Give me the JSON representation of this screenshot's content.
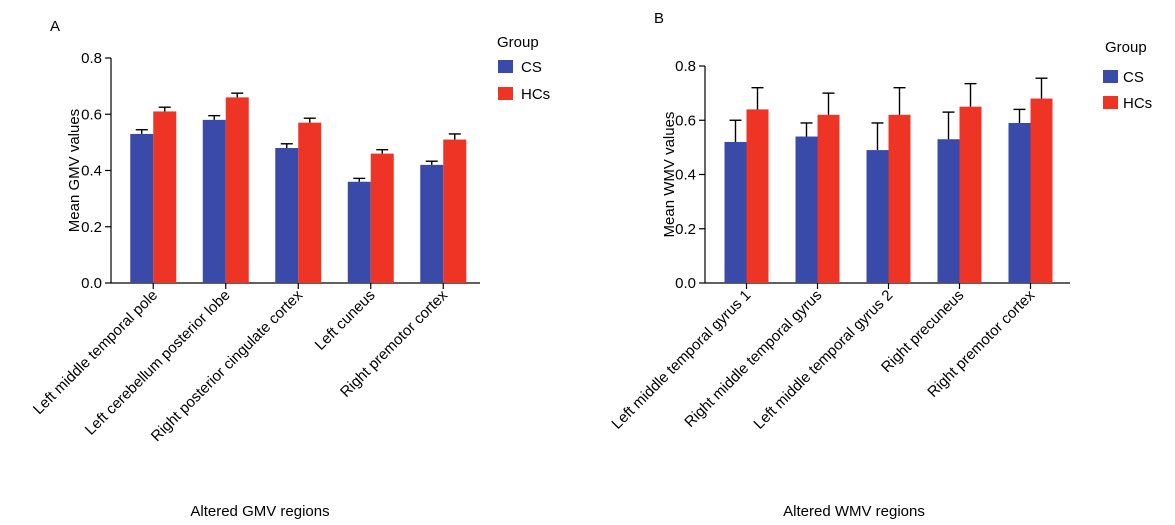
{
  "colors": {
    "CS": "#3a4aa8",
    "HCs": "#ee3424",
    "error": "#000000"
  },
  "chart_data": [
    {
      "type": "bar",
      "panel_label": "A",
      "title": "",
      "xlabel": "Altered GMV regions",
      "ylabel": "Mean GMV values",
      "ylim": [
        0,
        0.8
      ],
      "yticks": [
        "0.0",
        "0.2",
        "0.4",
        "0.6",
        "0.8"
      ],
      "legend": {
        "title": "Group",
        "placement": "top-right",
        "entries": [
          "CS",
          "HCs"
        ]
      },
      "categories": [
        "Left middle temporal pole",
        "Left cerebellum posterior lobe",
        "Right posterior cingulate cortex",
        "Left cuneus",
        "Right premotor cortex"
      ],
      "series": [
        {
          "name": "CS",
          "values": [
            0.53,
            0.58,
            0.48,
            0.36,
            0.42
          ],
          "errors": [
            0.015,
            0.015,
            0.015,
            0.012,
            0.013
          ]
        },
        {
          "name": "HCs",
          "values": [
            0.61,
            0.66,
            0.57,
            0.46,
            0.51
          ],
          "errors": [
            0.015,
            0.015,
            0.016,
            0.014,
            0.02
          ]
        }
      ]
    },
    {
      "type": "bar",
      "panel_label": "B",
      "title": "",
      "xlabel": "Altered WMV regions",
      "ylabel": "Mean WMV values",
      "ylim": [
        0,
        0.8
      ],
      "yticks": [
        "0.0",
        "0.2",
        "0.4",
        "0.6",
        "0.8"
      ],
      "legend": {
        "title": "Group",
        "placement": "top-right",
        "entries": [
          "CS",
          "HCs"
        ]
      },
      "categories": [
        "Left middle temporal gyrus 1",
        "Right middle temporal gyrus",
        "Left middle temporal gyrus 2",
        "Right precuneus",
        "Right premotor cortex"
      ],
      "series": [
        {
          "name": "CS",
          "values": [
            0.52,
            0.54,
            0.49,
            0.53,
            0.59
          ],
          "errors": [
            0.08,
            0.05,
            0.1,
            0.1,
            0.05
          ]
        },
        {
          "name": "HCs",
          "values": [
            0.64,
            0.62,
            0.62,
            0.65,
            0.68
          ],
          "errors": [
            0.08,
            0.08,
            0.1,
            0.085,
            0.075
          ]
        }
      ]
    }
  ]
}
